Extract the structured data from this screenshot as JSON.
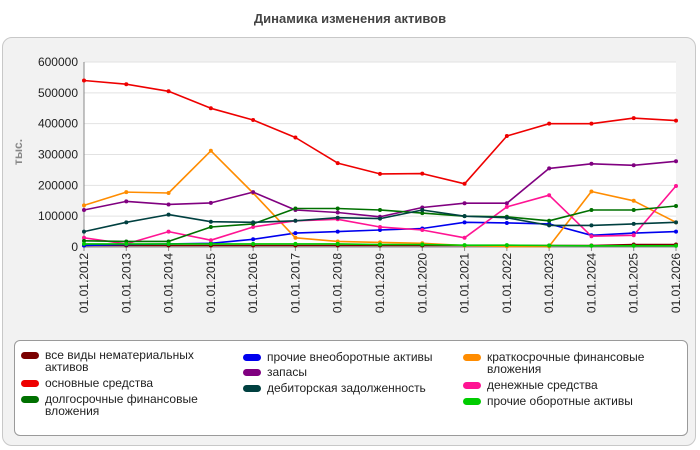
{
  "title": "Динамика изменения активов",
  "chart_data": {
    "type": "line",
    "title": "Динамика изменения активов",
    "ylabel": "тыс.",
    "xlabel": "",
    "ylim": [
      0,
      600000
    ],
    "yticks": [
      "0",
      "100000",
      "200000",
      "300000",
      "400000",
      "500000",
      "600000"
    ],
    "categories": [
      "01.01.2012",
      "01.01.2013",
      "01.01.2014",
      "01.01.2015",
      "01.01.2016",
      "01.01.2017",
      "01.01.2018",
      "01.01.2019",
      "01.01.2020",
      "01.01.2021",
      "01.01.2022",
      "01.01.2023",
      "01.01.2024",
      "01.01.2025",
      "01.01.2026"
    ],
    "legend_position": "bottom",
    "series": [
      {
        "name": "все виды нематериальных активов",
        "color": "#7a0000",
        "values": [
          5000,
          5000,
          5000,
          5000,
          5000,
          5000,
          5000,
          5000,
          5000,
          5000,
          5000,
          5000,
          5000,
          8000,
          8000
        ]
      },
      {
        "name": "прочие внеоборотные активы",
        "color": "#0000ee",
        "values": [
          5000,
          8000,
          10000,
          12000,
          25000,
          45000,
          50000,
          55000,
          60000,
          80000,
          78000,
          75000,
          38000,
          45000,
          50000
        ]
      },
      {
        "name": "краткосрочные финансовые вложения",
        "color": "#ff8c00",
        "values": [
          135000,
          178000,
          175000,
          312000,
          175000,
          30000,
          18000,
          15000,
          12000,
          5000,
          2000,
          2000,
          180000,
          150000,
          80000
        ]
      },
      {
        "name": "основные средства",
        "color": "#ee0000",
        "values": [
          540000,
          528000,
          505000,
          450000,
          412000,
          355000,
          272000,
          237000,
          238000,
          205000,
          360000,
          400000,
          400000,
          418000,
          410000
        ]
      },
      {
        "name": "запасы",
        "color": "#800080",
        "values": [
          120000,
          148000,
          138000,
          143000,
          178000,
          120000,
          112000,
          98000,
          128000,
          142000,
          142000,
          255000,
          270000,
          265000,
          278000
        ]
      },
      {
        "name": "денежные средства",
        "color": "#ff1493",
        "values": [
          30000,
          10000,
          50000,
          22000,
          65000,
          85000,
          90000,
          65000,
          55000,
          30000,
          130000,
          168000,
          35000,
          38000,
          198000
        ]
      },
      {
        "name": "долгосрочные финансовые вложения",
        "color": "#007000",
        "values": [
          20000,
          18000,
          18000,
          65000,
          75000,
          125000,
          125000,
          120000,
          110000,
          100000,
          98000,
          85000,
          120000,
          120000,
          133000
        ]
      },
      {
        "name": "дебиторская задолженность",
        "color": "#004040",
        "values": [
          50000,
          80000,
          105000,
          82000,
          80000,
          85000,
          95000,
          92000,
          120000,
          100000,
          95000,
          70000,
          70000,
          75000,
          80000
        ]
      },
      {
        "name": "прочие оборотные активы",
        "color": "#00cc00",
        "values": [
          10000,
          10000,
          10000,
          10000,
          10000,
          10000,
          10000,
          8000,
          8000,
          6000,
          6000,
          5000,
          4000,
          4000,
          4000
        ]
      }
    ]
  },
  "legend": {
    "items": [
      {
        "label": "все виды нематериальных активов",
        "color": "#7a0000"
      },
      {
        "label": "прочие внеоборотные активы",
        "color": "#0000ee"
      },
      {
        "label": "краткосрочные финансовые вложения",
        "color": "#ff8c00"
      },
      {
        "label": "основные средства",
        "color": "#ee0000"
      },
      {
        "label": "запасы",
        "color": "#800080"
      },
      {
        "label": "денежные средства",
        "color": "#ff1493"
      },
      {
        "label": "долгосрочные финансовые вложения",
        "color": "#007000"
      },
      {
        "label": "дебиторская задолженность",
        "color": "#004040"
      },
      {
        "label": "прочие оборотные активы",
        "color": "#00cc00"
      }
    ]
  }
}
